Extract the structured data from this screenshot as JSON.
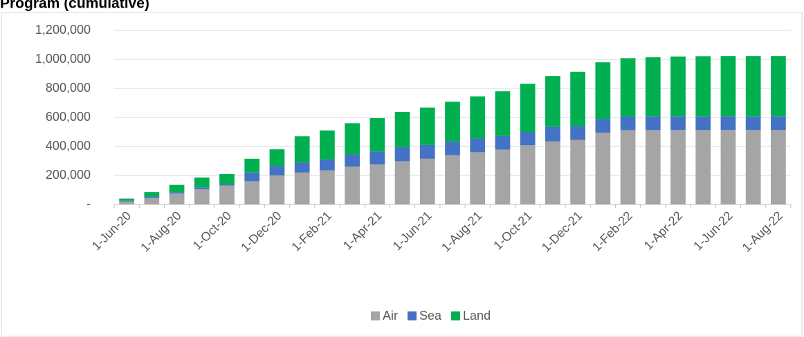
{
  "chart_data": {
    "type": "stacked-bar",
    "title": "Program (cumulative)",
    "categories": [
      "1-Jun-20",
      null,
      "1-Aug-20",
      null,
      "1-Oct-20",
      null,
      "1-Dec-20",
      null,
      "1-Feb-21",
      null,
      "1-Apr-21",
      null,
      "1-Jun-21",
      null,
      "1-Aug-21",
      null,
      "1-Oct-21",
      null,
      "1-Dec-21",
      null,
      "1-Feb-22",
      null,
      "1-Apr-22",
      null,
      "1-Jun-22",
      null,
      "1-Aug-22"
    ],
    "series": [
      {
        "name": "Air",
        "color": "#a5a5a5",
        "values": [
          20000,
          45000,
          75000,
          105000,
          130000,
          160000,
          200000,
          220000,
          235000,
          260000,
          275000,
          298000,
          315000,
          340000,
          360000,
          378000,
          408000,
          435000,
          445000,
          495000,
          512000,
          513000,
          513000,
          513000,
          513000,
          513000,
          513000
        ]
      },
      {
        "name": "Sea",
        "color": "#4472c4",
        "values": [
          5000,
          10000,
          10000,
          13000,
          10000,
          60000,
          65000,
          70000,
          75000,
          85000,
          90000,
          97000,
          95000,
          95000,
          95000,
          94000,
          92000,
          100000,
          95000,
          95000,
          95000,
          95000,
          95000,
          95000,
          95000,
          95000,
          95000
        ]
      },
      {
        "name": "Land",
        "color": "#00b050",
        "values": [
          15000,
          30000,
          50000,
          67000,
          70000,
          95000,
          115000,
          180000,
          200000,
          215000,
          230000,
          243000,
          258000,
          273000,
          290000,
          308000,
          332000,
          350000,
          375000,
          390000,
          401000,
          407000,
          412000,
          414000,
          415000,
          415000,
          415000
        ]
      }
    ],
    "ylim": [
      0,
      1200000
    ],
    "yticks": [
      {
        "value": 0,
        "label": "-"
      },
      {
        "value": 200000,
        "label": "200,000"
      },
      {
        "value": 400000,
        "label": "400,000"
      },
      {
        "value": 600000,
        "label": "600,000"
      },
      {
        "value": 800000,
        "label": "800,000"
      },
      {
        "value": 1000000,
        "label": "1,000,000"
      },
      {
        "value": 1200000,
        "label": "1,200,000"
      }
    ],
    "grid": true,
    "legend": "bottom"
  }
}
